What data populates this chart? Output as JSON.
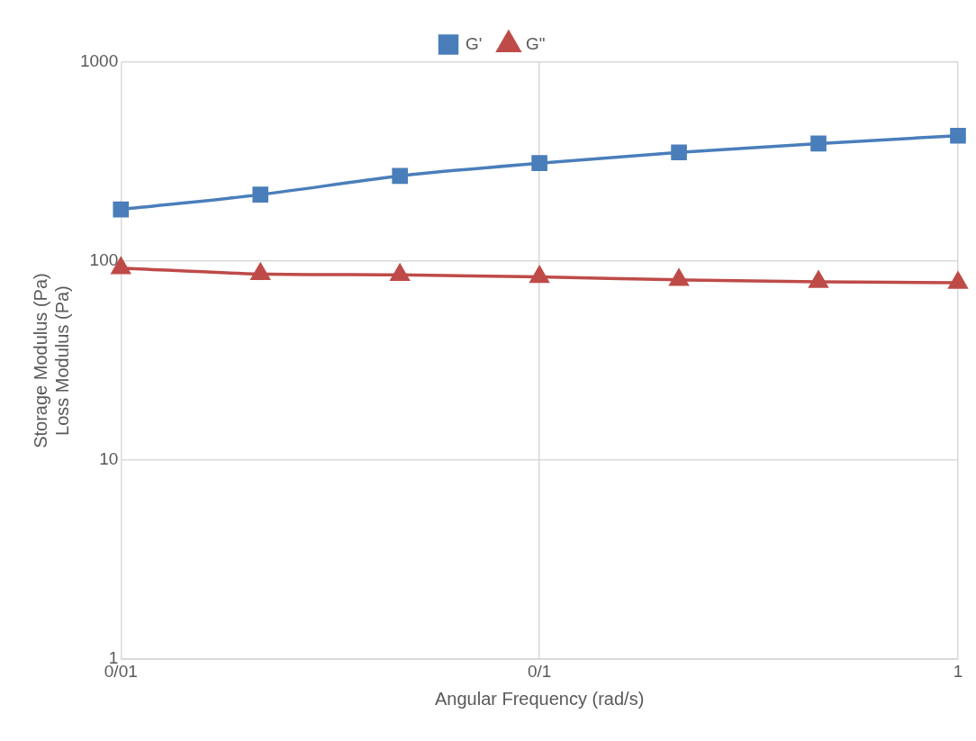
{
  "chart_data": {
    "type": "line",
    "xlabel": "Angular Frequency (rad/s)",
    "ylabel": "Storage Modulus (Pa)\nLoss Modulus (Pa)",
    "categories": [
      "0/01",
      null,
      null,
      "0/1",
      null,
      null,
      "1"
    ],
    "series": [
      {
        "name": "G'",
        "color": "#4a7ebb",
        "marker": "square",
        "values": [
          182,
          216,
          268,
          311,
          352,
          390,
          427
        ]
      },
      {
        "name": "G\"",
        "color": "#be4b48",
        "marker": "triangle",
        "values": [
          92.4,
          86.3,
          85.3,
          83.4,
          80.6,
          78.8,
          78.0
        ]
      }
    ],
    "log": "y",
    "ylim": [
      1,
      1000
    ],
    "yticks": [
      1,
      10,
      100,
      1000
    ],
    "grid": true,
    "legend": "top",
    "line_style": "solid"
  }
}
